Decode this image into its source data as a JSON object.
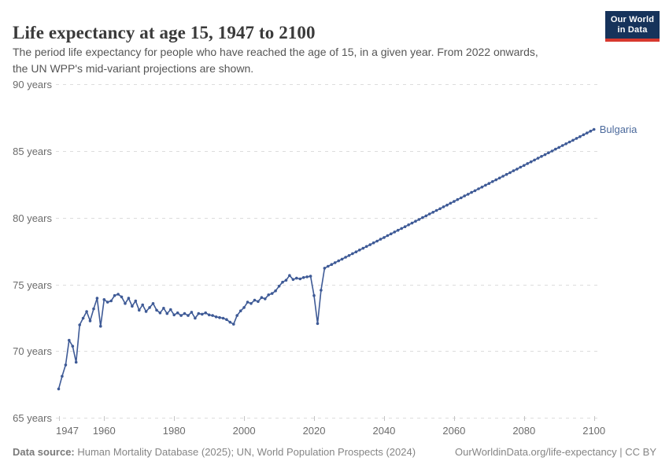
{
  "header": {
    "title": "Life expectancy at age 15, 1947 to 2100",
    "subtitle_line1": "The period life expectancy for people who have reached the age of 15, in a given year. From 2022 onwards,",
    "subtitle_line2": "the UN WPP's mid-variant projections are shown."
  },
  "logo": {
    "line1": "Our World",
    "line2": "in Data",
    "bg_color": "#16335b",
    "accent_color": "#d7382e"
  },
  "chart_data": {
    "type": "line",
    "title": "Life expectancy at age 15, 1947 to 2100",
    "xlabel": "",
    "ylabel": "",
    "xlim": [
      1947,
      2100
    ],
    "ylim": [
      65,
      90
    ],
    "grid": "dashed-horizontal",
    "legend_position": "end-of-line",
    "yticks": [
      {
        "value": 65,
        "label": "65 years"
      },
      {
        "value": 70,
        "label": "70 years"
      },
      {
        "value": 75,
        "label": "75 years"
      },
      {
        "value": 80,
        "label": "80 years"
      },
      {
        "value": 85,
        "label": "85 years"
      },
      {
        "value": 90,
        "label": "90 years"
      }
    ],
    "xticks": [
      {
        "value": 1947,
        "label": "1947"
      },
      {
        "value": 1960,
        "label": "1960"
      },
      {
        "value": 1980,
        "label": "1980"
      },
      {
        "value": 2000,
        "label": "2000"
      },
      {
        "value": 2020,
        "label": "2020"
      },
      {
        "value": 2040,
        "label": "2040"
      },
      {
        "value": 2060,
        "label": "2060"
      },
      {
        "value": 2080,
        "label": "2080"
      },
      {
        "value": 2100,
        "label": "2100"
      }
    ],
    "projection_start_year": 2022,
    "series": [
      {
        "name": "Bulgaria",
        "color": "#3e5a96",
        "label_color": "#4c6a9c",
        "points": [
          [
            1947,
            67.2
          ],
          [
            1948,
            68.15
          ],
          [
            1949,
            69.0
          ],
          [
            1950,
            70.85
          ],
          [
            1951,
            70.4
          ],
          [
            1952,
            69.2
          ],
          [
            1953,
            72.0
          ],
          [
            1954,
            72.5
          ],
          [
            1955,
            73.0
          ],
          [
            1956,
            72.3
          ],
          [
            1957,
            73.2
          ],
          [
            1958,
            74.0
          ],
          [
            1959,
            71.9
          ],
          [
            1960,
            73.9
          ],
          [
            1961,
            73.7
          ],
          [
            1962,
            73.8
          ],
          [
            1963,
            74.2
          ],
          [
            1964,
            74.3
          ],
          [
            1965,
            74.1
          ],
          [
            1966,
            73.6
          ],
          [
            1967,
            74.0
          ],
          [
            1968,
            73.4
          ],
          [
            1969,
            73.8
          ],
          [
            1970,
            73.1
          ],
          [
            1971,
            73.5
          ],
          [
            1972,
            73.0
          ],
          [
            1973,
            73.3
          ],
          [
            1974,
            73.6
          ],
          [
            1975,
            73.1
          ],
          [
            1976,
            72.9
          ],
          [
            1977,
            73.25
          ],
          [
            1978,
            72.85
          ],
          [
            1979,
            73.15
          ],
          [
            1980,
            72.75
          ],
          [
            1981,
            72.9
          ],
          [
            1982,
            72.7
          ],
          [
            1983,
            72.85
          ],
          [
            1984,
            72.7
          ],
          [
            1985,
            72.95
          ],
          [
            1986,
            72.5
          ],
          [
            1987,
            72.85
          ],
          [
            1988,
            72.8
          ],
          [
            1989,
            72.9
          ],
          [
            1990,
            72.75
          ],
          [
            1991,
            72.7
          ],
          [
            1992,
            72.6
          ],
          [
            1993,
            72.55
          ],
          [
            1994,
            72.5
          ],
          [
            1995,
            72.4
          ],
          [
            1996,
            72.2
          ],
          [
            1997,
            72.05
          ],
          [
            1998,
            72.7
          ],
          [
            1999,
            73.05
          ],
          [
            2000,
            73.3
          ],
          [
            2001,
            73.7
          ],
          [
            2002,
            73.6
          ],
          [
            2003,
            73.85
          ],
          [
            2004,
            73.75
          ],
          [
            2005,
            74.05
          ],
          [
            2006,
            73.95
          ],
          [
            2007,
            74.25
          ],
          [
            2008,
            74.35
          ],
          [
            2009,
            74.55
          ],
          [
            2010,
            74.9
          ],
          [
            2011,
            75.2
          ],
          [
            2012,
            75.35
          ],
          [
            2013,
            75.7
          ],
          [
            2014,
            75.4
          ],
          [
            2015,
            75.5
          ],
          [
            2016,
            75.45
          ],
          [
            2017,
            75.55
          ],
          [
            2018,
            75.6
          ],
          [
            2019,
            75.65
          ],
          [
            2020,
            74.2
          ],
          [
            2021,
            72.1
          ],
          [
            2022,
            74.6
          ],
          [
            2023,
            76.25
          ],
          [
            2024,
            76.39
          ],
          [
            2025,
            76.53
          ],
          [
            2026,
            76.66
          ],
          [
            2027,
            76.8
          ],
          [
            2028,
            76.93
          ],
          [
            2029,
            77.07
          ],
          [
            2030,
            77.2
          ],
          [
            2031,
            77.34
          ],
          [
            2032,
            77.47
          ],
          [
            2033,
            77.61
          ],
          [
            2034,
            77.74
          ],
          [
            2035,
            77.88
          ],
          [
            2036,
            78.01
          ],
          [
            2037,
            78.15
          ],
          [
            2038,
            78.28
          ],
          [
            2039,
            78.42
          ],
          [
            2040,
            78.55
          ],
          [
            2041,
            78.69
          ],
          [
            2042,
            78.82
          ],
          [
            2043,
            78.96
          ],
          [
            2044,
            79.09
          ],
          [
            2045,
            79.23
          ],
          [
            2046,
            79.36
          ],
          [
            2047,
            79.5
          ],
          [
            2048,
            79.63
          ],
          [
            2049,
            79.77
          ],
          [
            2050,
            79.9
          ],
          [
            2051,
            80.04
          ],
          [
            2052,
            80.17
          ],
          [
            2053,
            80.31
          ],
          [
            2054,
            80.44
          ],
          [
            2055,
            80.58
          ],
          [
            2056,
            80.71
          ],
          [
            2057,
            80.85
          ],
          [
            2058,
            80.98
          ],
          [
            2059,
            81.12
          ],
          [
            2060,
            81.25
          ],
          [
            2061,
            81.39
          ],
          [
            2062,
            81.52
          ],
          [
            2063,
            81.66
          ],
          [
            2064,
            81.79
          ],
          [
            2065,
            81.93
          ],
          [
            2066,
            82.06
          ],
          [
            2067,
            82.2
          ],
          [
            2068,
            82.33
          ],
          [
            2069,
            82.47
          ],
          [
            2070,
            82.6
          ],
          [
            2071,
            82.74
          ],
          [
            2072,
            82.87
          ],
          [
            2073,
            83.01
          ],
          [
            2074,
            83.14
          ],
          [
            2075,
            83.28
          ],
          [
            2076,
            83.41
          ],
          [
            2077,
            83.55
          ],
          [
            2078,
            83.68
          ],
          [
            2079,
            83.82
          ],
          [
            2080,
            83.95
          ],
          [
            2081,
            84.09
          ],
          [
            2082,
            84.22
          ],
          [
            2083,
            84.36
          ],
          [
            2084,
            84.49
          ],
          [
            2085,
            84.63
          ],
          [
            2086,
            84.76
          ],
          [
            2087,
            84.9
          ],
          [
            2088,
            85.03
          ],
          [
            2089,
            85.17
          ],
          [
            2090,
            85.3
          ],
          [
            2091,
            85.44
          ],
          [
            2092,
            85.57
          ],
          [
            2093,
            85.71
          ],
          [
            2094,
            85.84
          ],
          [
            2095,
            85.98
          ],
          [
            2096,
            86.11
          ],
          [
            2097,
            86.25
          ],
          [
            2098,
            86.38
          ],
          [
            2099,
            86.52
          ],
          [
            2100,
            86.65
          ]
        ]
      }
    ]
  },
  "footer": {
    "source_label": "Data source:",
    "source_text": " Human Mortality Database (2025); UN, World Population Prospects (2024)",
    "credit": "OurWorldinData.org/life-expectancy | CC BY"
  }
}
